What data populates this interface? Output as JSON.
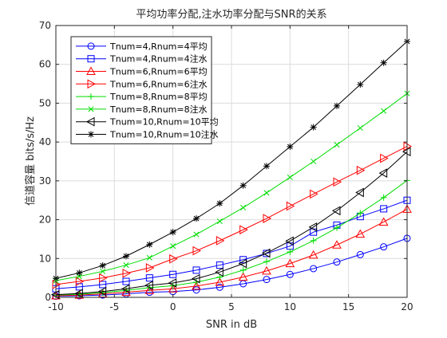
{
  "chart_data": {
    "type": "line",
    "title": "平均功率分配,注水功率分配与SNR的关系",
    "xlabel": "SNR in dB",
    "ylabel": "信道容量 bits/s/Hz",
    "xlim": [
      -10,
      20
    ],
    "ylim": [
      0,
      70
    ],
    "xticks": [
      -10,
      -5,
      0,
      5,
      10,
      15,
      20
    ],
    "yticks": [
      0,
      10,
      20,
      30,
      40,
      50,
      60,
      70
    ],
    "grid": true,
    "legend_position": "top-left",
    "x": [
      -10,
      -8,
      -6,
      -4,
      -2,
      0,
      2,
      4,
      6,
      8,
      10,
      12,
      14,
      16,
      18,
      20
    ],
    "series": [
      {
        "name": "Tnum=4,Rnum=4平均",
        "color": "#0000ff",
        "marker": "circle",
        "values": [
          0.3,
          0.4,
          0.6,
          0.9,
          1.3,
          1.5,
          1.9,
          2.6,
          3.5,
          4.6,
          5.9,
          7.4,
          9.1,
          11.0,
          13.0,
          15.2
        ]
      },
      {
        "name": "Tnum=4,Rnum=4注水",
        "color": "#0000ff",
        "marker": "square",
        "values": [
          2.2,
          2.7,
          3.3,
          4.1,
          5.0,
          5.9,
          7.0,
          8.3,
          9.7,
          11.3,
          13.2,
          16.8,
          18.6,
          20.8,
          22.8,
          25.0
        ]
      },
      {
        "name": "Tnum=6,Rnum=6平均",
        "color": "#ff0000",
        "marker": "triangle-up",
        "values": [
          0.4,
          0.6,
          0.9,
          1.3,
          1.8,
          2.2,
          2.9,
          3.9,
          5.2,
          6.8,
          8.7,
          10.9,
          13.5,
          16.3,
          19.4,
          22.7
        ]
      },
      {
        "name": "Tnum=6,Rnum=6注水",
        "color": "#ff0000",
        "marker": "triangle-right",
        "values": [
          3.3,
          4.1,
          5.0,
          6.2,
          7.6,
          9.9,
          12.0,
          14.6,
          17.4,
          20.3,
          23.5,
          26.6,
          29.7,
          32.7,
          35.8,
          38.9
        ]
      },
      {
        "name": "Tnum=8,Rnum=8平均",
        "color": "#00dd00",
        "marker": "plus",
        "values": [
          0.6,
          0.8,
          1.2,
          1.8,
          2.5,
          3.0,
          3.9,
          5.2,
          7.0,
          9.2,
          11.7,
          14.6,
          17.9,
          21.7,
          25.7,
          30.1
        ]
      },
      {
        "name": "Tnum=8,Rnum=8注水",
        "color": "#00dd00",
        "marker": "x",
        "values": [
          4.3,
          5.4,
          6.7,
          8.3,
          10.2,
          13.2,
          16.2,
          19.6,
          23.1,
          26.9,
          30.9,
          35.0,
          39.3,
          43.6,
          48.0,
          52.5
        ]
      },
      {
        "name": "Tnum=10,Rnum=10平均",
        "color": "#000000",
        "marker": "triangle-left",
        "values": [
          0.7,
          1.0,
          1.5,
          2.2,
          3.1,
          3.7,
          4.8,
          6.5,
          8.7,
          11.4,
          14.5,
          18.1,
          22.3,
          27.0,
          32.0,
          37.5
        ]
      },
      {
        "name": "Tnum=10,Rnum=10注水",
        "color": "#000000",
        "marker": "star",
        "values": [
          4.9,
          6.3,
          8.2,
          10.6,
          13.6,
          16.8,
          20.3,
          24.2,
          28.8,
          33.8,
          38.8,
          43.8,
          49.3,
          54.8,
          60.4,
          65.9
        ]
      }
    ]
  }
}
